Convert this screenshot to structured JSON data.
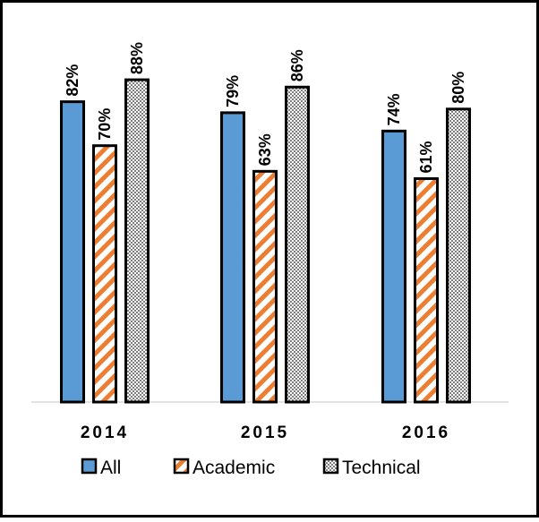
{
  "chart_data": {
    "type": "bar",
    "categories": [
      "2014",
      "2015",
      "2016"
    ],
    "series": [
      {
        "name": "All",
        "values": [
          82,
          79,
          74
        ],
        "labels": [
          "82%",
          "79%",
          "74%"
        ],
        "color": "#5b9bd5",
        "pattern": "solid"
      },
      {
        "name": "Academic",
        "values": [
          70,
          63,
          61
        ],
        "labels": [
          "70%",
          "63%",
          "61%"
        ],
        "color": "#ed7d31",
        "pattern": "diagonal-stripes"
      },
      {
        "name": "Technical",
        "values": [
          88,
          86,
          80
        ],
        "labels": [
          "88%",
          "86%",
          "80%"
        ],
        "color": "#7f7f7f",
        "pattern": "checker"
      }
    ],
    "ylim": [
      0,
      100
    ],
    "y_axis_visible": false,
    "grid": false,
    "legend_position": "bottom",
    "data_label_orientation": "vertical"
  }
}
